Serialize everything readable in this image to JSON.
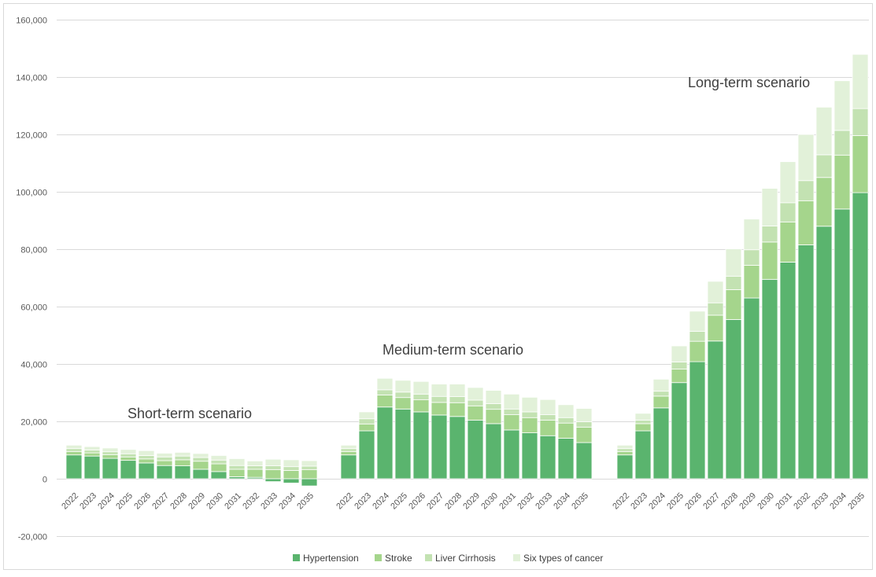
{
  "chart_data": {
    "type": "bar",
    "stacked": true,
    "ylim": [
      -20000,
      160000
    ],
    "yticks": [
      -20000,
      0,
      20000,
      40000,
      60000,
      80000,
      100000,
      120000,
      140000,
      160000
    ],
    "ytick_labels": [
      "-20,000",
      "0",
      "20,000",
      "40,000",
      "60,000",
      "80,000",
      "100,000",
      "120,000",
      "140,000",
      "160,000"
    ],
    "grid": true,
    "legend_position": "bottom",
    "colors": {
      "Hypertension": "#5ab46e",
      "Stroke": "#a5d58c",
      "Liver Cirrhosis": "#c3e2b2",
      "Six types of cancer": "#e2f1d9"
    },
    "legend": [
      "Hypertension",
      "Stroke",
      "Liver Cirrhosis",
      "Six types of cancer"
    ],
    "groups": [
      {
        "label": "Short-term scenario",
        "categories": [
          "2022",
          "2023",
          "2024",
          "2025",
          "2026",
          "2027",
          "2028",
          "2029",
          "2030",
          "2031",
          "2032",
          "2033",
          "2034",
          "2035"
        ],
        "series": [
          {
            "name": "Hypertension",
            "values": [
              8300,
              7900,
              7100,
              6400,
              5500,
              4600,
              4500,
              3300,
              2500,
              700,
              500,
              -1000,
              -1500,
              -2500
            ]
          },
          {
            "name": "Stroke",
            "values": [
              1200,
              1100,
              1300,
              1200,
              1400,
              1700,
              2100,
              2800,
              2700,
              2600,
              2800,
              3200,
              2900,
              3200
            ]
          },
          {
            "name": "Liver Cirrhosis",
            "values": [
              1000,
              1000,
              1000,
              1100,
              1200,
              1300,
              1300,
              1300,
              1300,
              1300,
              1200,
              1300,
              1300,
              1200
            ]
          },
          {
            "name": "Six types of cancer",
            "values": [
              1200,
              1200,
              1300,
              1500,
              1700,
              1300,
              1300,
              1400,
              1600,
              2400,
              1700,
              2300,
              2400,
              1900
            ]
          }
        ]
      },
      {
        "label": "Medium-term scenario",
        "categories": [
          "2022",
          "2023",
          "2024",
          "2025",
          "2026",
          "2027",
          "2028",
          "2029",
          "2030",
          "2031",
          "2032",
          "2033",
          "2034",
          "2035"
        ],
        "series": [
          {
            "name": "Hypertension",
            "values": [
              8300,
              16700,
              25000,
              24300,
              23300,
              22200,
              21700,
              20400,
              19200,
              17000,
              16000,
              15000,
              14100,
              12600
            ]
          },
          {
            "name": "Stroke",
            "values": [
              1200,
              2400,
              4200,
              4000,
              4200,
              4400,
              4800,
              5000,
              5000,
              5300,
              5300,
              5400,
              5300,
              5400
            ]
          },
          {
            "name": "Liver Cirrhosis",
            "values": [
              1000,
              1800,
              1800,
              1900,
              2000,
              2100,
              2100,
              2000,
              2000,
              2000,
              2000,
              1900,
              1900,
              1900
            ]
          },
          {
            "name": "Six types of cancer",
            "values": [
              1200,
              2400,
              4000,
              4100,
              4400,
              4300,
              4400,
              4400,
              4600,
              5200,
              5100,
              5300,
              4500,
              4600
            ]
          }
        ]
      },
      {
        "label": "Long-term scenario",
        "categories": [
          "2022",
          "2023",
          "2024",
          "2025",
          "2026",
          "2027",
          "2028",
          "2029",
          "2030",
          "2031",
          "2032",
          "2033",
          "2034",
          "2035"
        ],
        "series": [
          {
            "name": "Hypertension",
            "values": [
              8300,
              16700,
              24700,
              33500,
              40800,
              48000,
              55500,
              63000,
              69500,
              75500,
              81500,
              88000,
              94000,
              99700
            ]
          },
          {
            "name": "Stroke",
            "values": [
              1200,
              2500,
              4100,
              4700,
              7100,
              9000,
              10400,
              11400,
              13000,
              14000,
              15400,
              17000,
              18800,
              19900
            ]
          },
          {
            "name": "Liver Cirrhosis",
            "values": [
              1000,
              1200,
              1700,
              2500,
              3500,
              4300,
              4700,
              5400,
              5600,
              6700,
              7000,
              7900,
              8600,
              9400
            ]
          },
          {
            "name": "Six types of cancer",
            "values": [
              1200,
              2400,
              4200,
              5600,
              7000,
              7500,
              9500,
              10700,
              13100,
              14300,
              16100,
              16600,
              17300,
              18900
            ]
          }
        ]
      }
    ]
  }
}
